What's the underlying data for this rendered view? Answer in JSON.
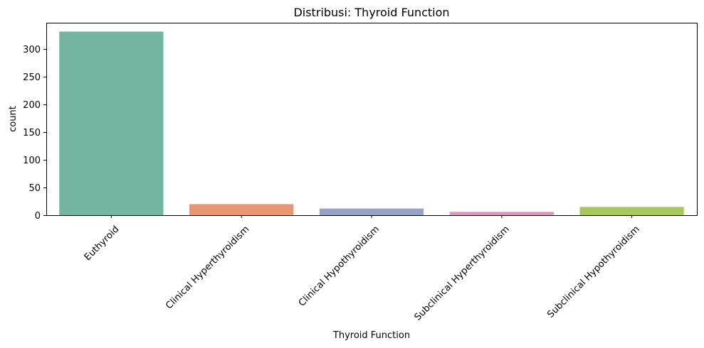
{
  "chart_data": {
    "type": "bar",
    "title": "Distribusi: Thyroid Function",
    "xlabel": "Thyroid Function",
    "ylabel": "count",
    "categories": [
      "Euthyroid",
      "Clinical Hyperthyroidism",
      "Clinical Hypothyroidism",
      "Subclinical Hyperthyroidism",
      "Subclinical Hypothyroidism"
    ],
    "values": [
      332,
      20,
      12,
      6,
      15
    ],
    "colors": [
      "#72b6a1",
      "#e99675",
      "#95a3c6",
      "#db96c0",
      "#a6c85e"
    ],
    "ylim": [
      0,
      348
    ],
    "yticks": [
      0,
      50,
      100,
      150,
      200,
      250,
      300
    ],
    "grid": false,
    "legend": "none"
  }
}
